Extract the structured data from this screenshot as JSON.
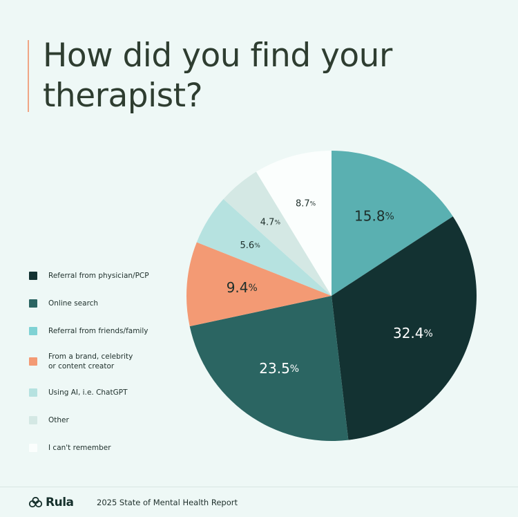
{
  "chart_data": {
    "type": "pie",
    "title": "How did you find your therapist?",
    "legend_position": "left",
    "slices": [
      {
        "label": "Referral from friends/family",
        "value": 15.8,
        "display": "15.8",
        "color": "#5ab0b1",
        "text_color": "#1e2f2b",
        "size": 20
      },
      {
        "label": "Referral from physician/PCP",
        "value": 32.4,
        "display": "32.4",
        "color": "#133232",
        "text_color": "#ffffff",
        "size": 20
      },
      {
        "label": "Online search",
        "value": 23.5,
        "display": "23.5",
        "color": "#2b6562",
        "text_color": "#ffffff",
        "size": 20
      },
      {
        "label": "From a brand, celebrity\nor content creator",
        "value": 9.4,
        "display": "9.4",
        "color": "#f39a74",
        "text_color": "#1e2f2b",
        "size": 20
      },
      {
        "label": "Using AI, i.e. ChatGPT",
        "value": 5.6,
        "display": "5.6",
        "color": "#b6e2e0",
        "text_color": "#1e2f2b",
        "size": 13
      },
      {
        "label": "Other",
        "value": 4.7,
        "display": "4.7",
        "color": "#d4e8e4",
        "text_color": "#1e2f2b",
        "size": 13
      },
      {
        "label": "I can't remember",
        "value": 8.7,
        "display": "8.7",
        "color": "#fbfefd",
        "text_color": "#1e2f2b",
        "size": 13
      }
    ],
    "percent_sign": "%"
  },
  "legend": {
    "items": [
      {
        "label": "Referral from physician/PCP",
        "color": "#133232"
      },
      {
        "label": "Online search",
        "color": "#2b6562"
      },
      {
        "label": "Referral from friends/family",
        "color": "#7fd2d4"
      },
      {
        "label": "From a brand, celebrity\nor content creator",
        "color": "#f39a74"
      },
      {
        "label": "Using AI, i.e. ChatGPT",
        "color": "#b6e2e0"
      },
      {
        "label": "Other",
        "color": "#d4e8e4"
      },
      {
        "label": "I can't remember",
        "color": "#fbfefd"
      }
    ]
  },
  "footer": {
    "logo_text": "Rula",
    "report_label": "2025 State of Mental Health Report"
  }
}
